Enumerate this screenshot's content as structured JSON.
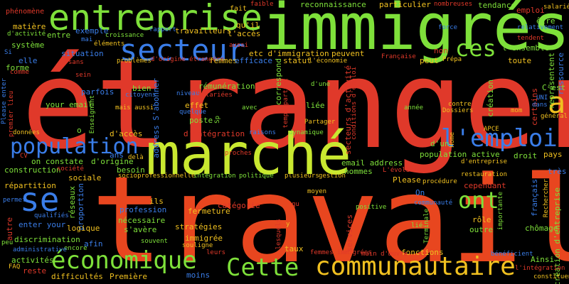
{
  "colors": {
    "background": "#000000",
    "red": "#e0392a",
    "orange_red": "#e8461f",
    "green": "#7ee03a",
    "lime": "#c9e830",
    "blue": "#3a7de8",
    "yellow": "#f0c020"
  },
  "words": [
    "étranger",
    "travail",
    "marché",
    "immigrés",
    "entreprise",
    "secteur",
    "population",
    "l'emploi",
    "économique",
    "communautaire",
    "Cette",
    "se",
    "ont",
    "ces",
    "a",
    "phénomène",
    "fait",
    "faible",
    "reconnaissance",
    "particulier",
    "nombreuses",
    "tendance",
    "emploi",
    "salarié",
    "être",
    "relativement",
    "force",
    "tendent",
    "l'ensemble",
    "représentent",
    "ressource",
    "matière",
    "d'activité",
    "entre",
    "exemple",
    "croissance",
    "rapport",
    "travailleurs",
    "l'accès",
    "qu'il",
    "aussi",
    "système",
    "situation",
    "peuvent",
    "non",
    "Prépa",
    "peut",
    "toute",
    "mai",
    "éléments",
    "etc d'immigration",
    "Française",
    "elle",
    "forme",
    "sans",
    "problèmes",
    "d'origine étrangère",
    "femmes",
    "efficace",
    "statut",
    "l'économie",
    "correspond",
    "comme",
    "sein",
    "rémunération",
    "d'une",
    "création",
    "C'est",
    "parfois",
    "bien",
    "citoyens",
    "niveau",
    "salariées",
    "temps partiel",
    "contre",
    "Dossiers",
    "année",
    "mom",
    "général",
    "your email",
    "mais aussi",
    "effet",
    "avec",
    "liée",
    "Enseignant",
    "quelque",
    "poste",
    "Sp",
    "d'accès",
    "d'intégration",
    "raisons",
    "dynamique",
    "Partager",
    "APCE",
    "données",
    "o",
    "address S'abonner",
    "secteurs d'activité",
    "conditions d'emploi",
    "Please enter",
    "premier lieu",
    "ans",
    "delà",
    "proches",
    "d'un",
    "population active",
    "droit",
    "pays",
    "CV",
    "on constate",
    "d'origine",
    "email address",
    "d'entreprise",
    "construction",
    "société",
    "besoin",
    "socioprofessionnelle",
    "intégration",
    "politique",
    "plusieurs",
    "gestion",
    "hommes",
    "L'évolution",
    "très",
    "restauration",
    "répartition",
    "Please",
    "cependant",
    "moyen",
    "procédure",
    "On",
    "français",
    "certains",
    "Rechercher",
    "ils",
    "catégorie",
    "positive",
    "communauté",
    "permet",
    "profession",
    "fermeture",
    "qualifiés",
    "nécessaire",
    "proportion",
    "réseaux",
    "sociale",
    "enter your",
    "logique",
    "s'avère",
    "stratégies",
    "rôle",
    "outre",
    "chômage",
    "création d'entreprise",
    "importante",
    "autre",
    "immigrée",
    "services",
    "Terminale",
    "lié",
    "discrimination",
    "afin",
    "souvent",
    "souligne",
    "encore",
    "taux",
    "fonctions",
    "Ainsi",
    "peu",
    "administrative",
    "bénéficient",
    "leurs",
    "femmes immigrées",
    "main d'œuvre",
    "lesquels",
    "activités",
    "FAQ",
    "reste",
    "difficultés",
    "Première",
    "moins",
    "l'intégration",
    "constituent",
    "y",
    "Si",
    "Home",
    "UNI",
    "dans",
    "qu"
  ]
}
